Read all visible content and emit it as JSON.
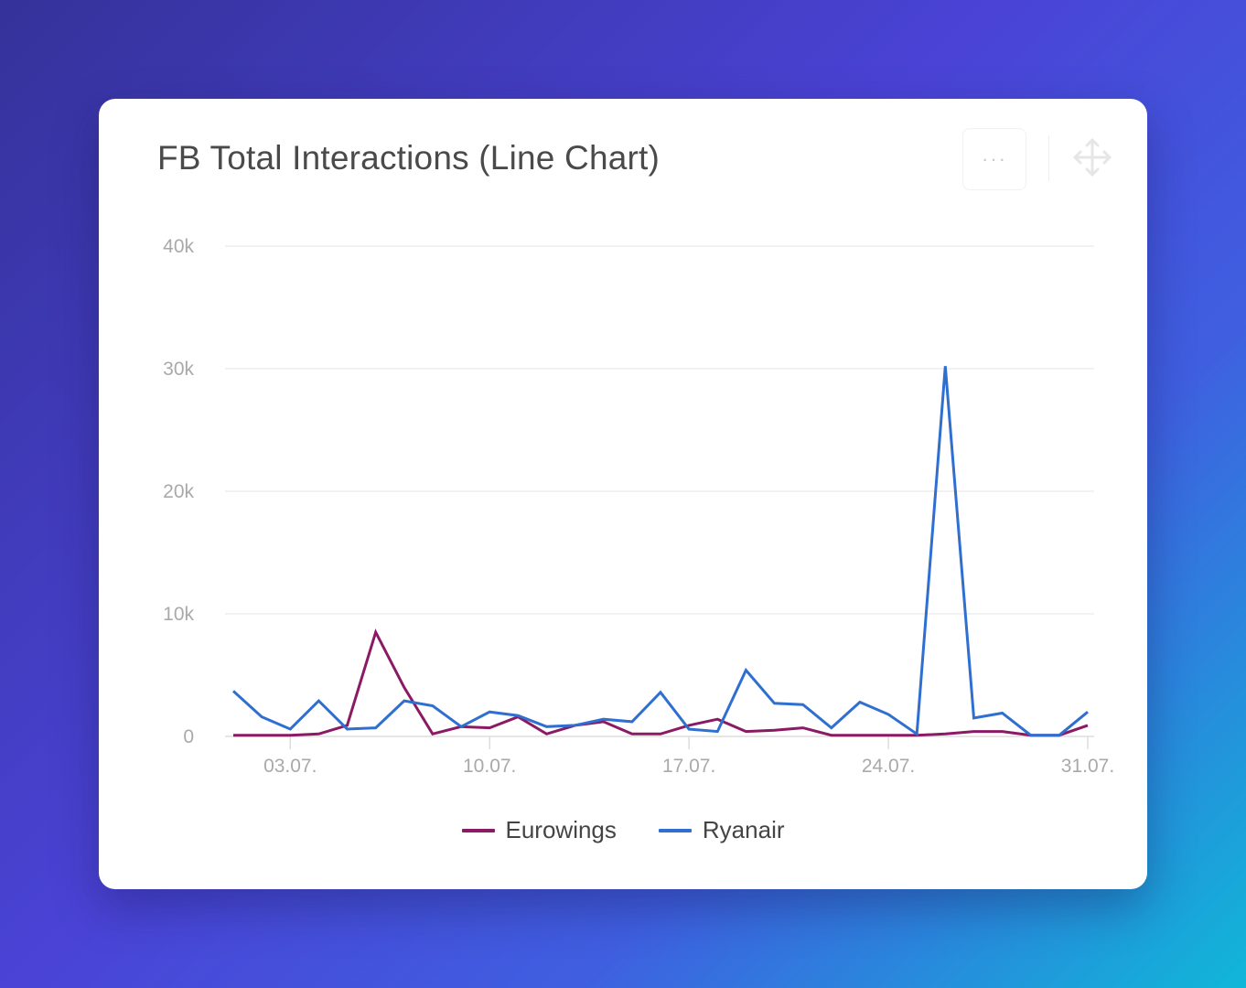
{
  "card": {
    "title": "FB Total Interactions (Line Chart)",
    "more_label": "···",
    "move_icon": "move-arrows-icon"
  },
  "chart_data": {
    "type": "line",
    "title": "FB Total Interactions (Line Chart)",
    "xlabel": "",
    "ylabel": "",
    "ylim": [
      0,
      40000
    ],
    "y_ticks": [
      0,
      10000,
      20000,
      30000,
      40000
    ],
    "y_tick_labels": [
      "0",
      "10k",
      "20k",
      "30k",
      "40k"
    ],
    "x": [
      "01.07.",
      "02.07.",
      "03.07.",
      "04.07.",
      "05.07.",
      "06.07.",
      "07.07.",
      "08.07.",
      "09.07.",
      "10.07.",
      "11.07.",
      "12.07.",
      "13.07.",
      "14.07.",
      "15.07.",
      "16.07.",
      "17.07.",
      "18.07.",
      "19.07.",
      "20.07.",
      "21.07.",
      "22.07.",
      "23.07.",
      "24.07.",
      "25.07.",
      "26.07.",
      "27.07.",
      "28.07.",
      "29.07.",
      "30.07.",
      "31.07."
    ],
    "x_tick_labels": [
      "03.07.",
      "10.07.",
      "17.07.",
      "24.07.",
      "31.07."
    ],
    "x_tick_positions": [
      2,
      9,
      16,
      23,
      30
    ],
    "grid": true,
    "legend_position": "bottom-center",
    "series": [
      {
        "name": "Eurowings",
        "color": "#8b1a64",
        "values": [
          100,
          100,
          100,
          200,
          900,
          8500,
          4000,
          200,
          800,
          700,
          1600,
          200,
          900,
          1200,
          200,
          200,
          900,
          1400,
          400,
          500,
          700,
          100,
          100,
          100,
          100,
          200,
          400,
          400,
          100,
          100,
          900
        ]
      },
      {
        "name": "Ryanair",
        "color": "#2f6fd0",
        "values": [
          3700,
          1600,
          600,
          2900,
          600,
          700,
          2900,
          2500,
          800,
          2000,
          1700,
          800,
          900,
          1400,
          1200,
          3600,
          600,
          400,
          5400,
          2700,
          2600,
          700,
          2800,
          1800,
          200,
          30200,
          1500,
          1900,
          100,
          100,
          2000
        ]
      }
    ]
  }
}
